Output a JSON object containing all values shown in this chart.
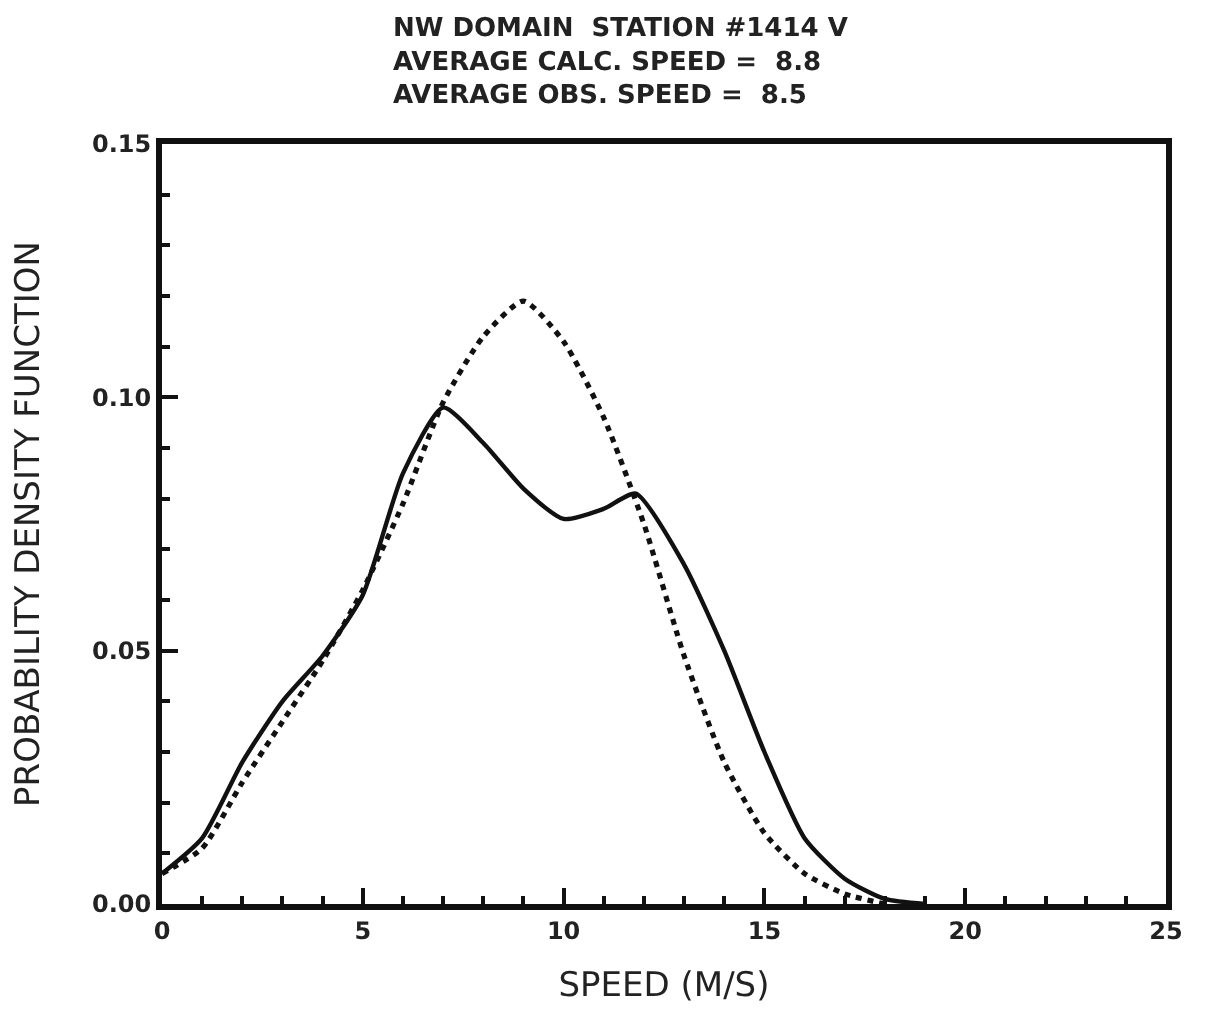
{
  "chart_data": {
    "type": "line",
    "title": "NW DOMAIN  STATION #1414 V\nAVERAGE CALC. SPEED =  8.8\nAVERAGE OBS. SPEED =  8.5",
    "xlabel": "SPEED (M/S)",
    "ylabel": "PROBABILITY DENSITY FUNCTION",
    "xlim": [
      0,
      25
    ],
    "ylim": [
      0,
      0.15
    ],
    "xticks": [
      0,
      5,
      10,
      15,
      20,
      25
    ],
    "yticks": [
      {
        "value": 0,
        "label": "0.00"
      },
      {
        "value": 0.05,
        "label": "0.05"
      },
      {
        "value": 0.1,
        "label": "0.10"
      },
      {
        "value": 0.15,
        "label": "0.15"
      }
    ],
    "marker": "none",
    "series": [
      {
        "color": "#111111",
        "line_style": "solid",
        "x": [
          0,
          1,
          2,
          3,
          4,
          5,
          6,
          7,
          8,
          9,
          10,
          11,
          11.8,
          13,
          14,
          15,
          16,
          17,
          18,
          19
        ],
        "values": [
          0.006,
          0.013,
          0.028,
          0.04,
          0.049,
          0.061,
          0.085,
          0.098,
          0.091,
          0.082,
          0.076,
          0.078,
          0.081,
          0.067,
          0.05,
          0.03,
          0.013,
          0.005,
          0.001,
          0
        ]
      },
      {
        "color": "#111111",
        "line_style": "dotted",
        "x": [
          0,
          1,
          2,
          3,
          4,
          5,
          6,
          7,
          8,
          9,
          10,
          11,
          12,
          13,
          14,
          15,
          16,
          17,
          18
        ],
        "values": [
          0.006,
          0.011,
          0.024,
          0.036,
          0.048,
          0.062,
          0.079,
          0.099,
          0.112,
          0.119,
          0.111,
          0.096,
          0.075,
          0.049,
          0.028,
          0.014,
          0.006,
          0.002,
          0
        ]
      }
    ]
  }
}
